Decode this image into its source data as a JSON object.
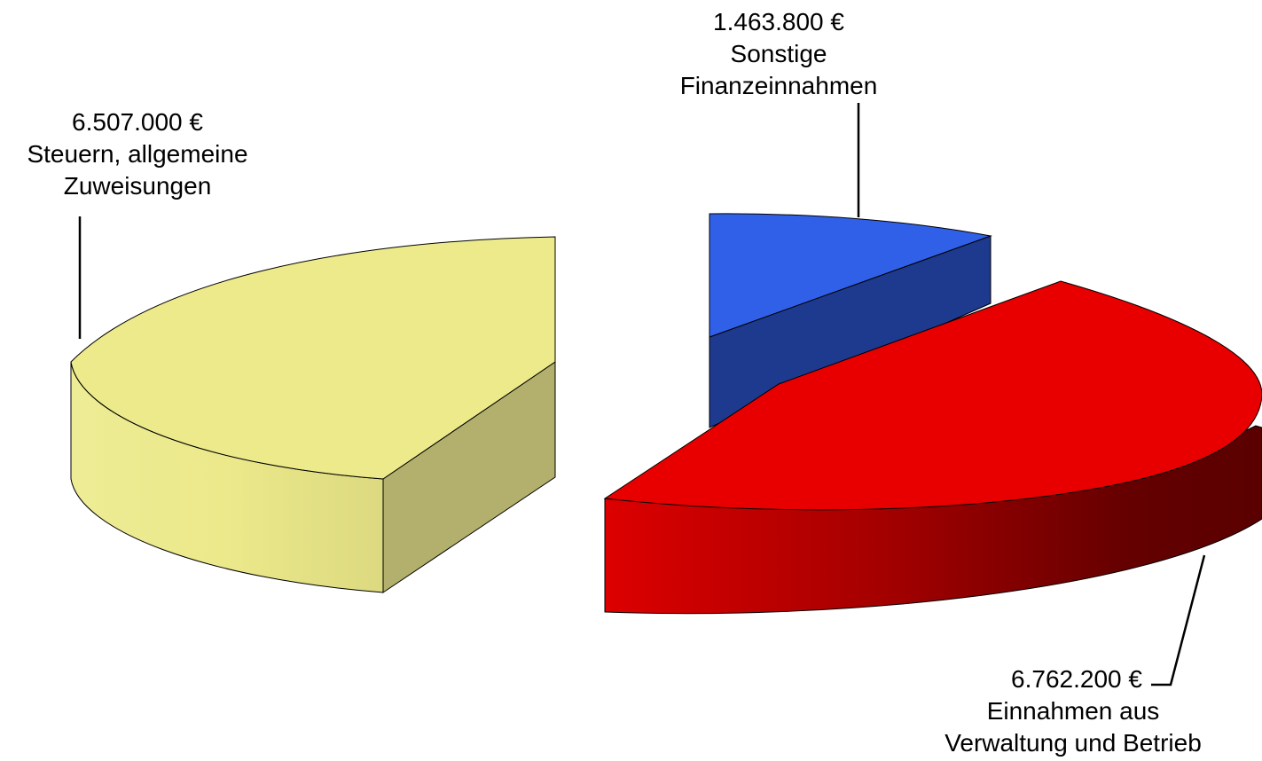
{
  "chart_data": {
    "type": "pie",
    "variant": "3d-exploded",
    "currency": "€",
    "slices": [
      {
        "value_text": "6.507.000 €",
        "value": 6507000,
        "label_lines": [
          "Steuern, allgemeine",
          "Zuweisungen"
        ],
        "color": "#ecea8a",
        "side_color": "#b2b06c"
      },
      {
        "value_text": "1.463.800 €",
        "value": 1463800,
        "label_lines": [
          "Sonstige",
          "Finanzeinnahmen"
        ],
        "color": "#3060e8",
        "side_color": "#1e3a8e"
      },
      {
        "value_text": "6.762.200 €",
        "value": 6762200,
        "label_lines": [
          "Einnahmen aus",
          "Verwaltung und Betrieb"
        ],
        "color": "#e80000",
        "side_color": "#8a0000"
      }
    ],
    "legend": "none",
    "grid": false
  }
}
